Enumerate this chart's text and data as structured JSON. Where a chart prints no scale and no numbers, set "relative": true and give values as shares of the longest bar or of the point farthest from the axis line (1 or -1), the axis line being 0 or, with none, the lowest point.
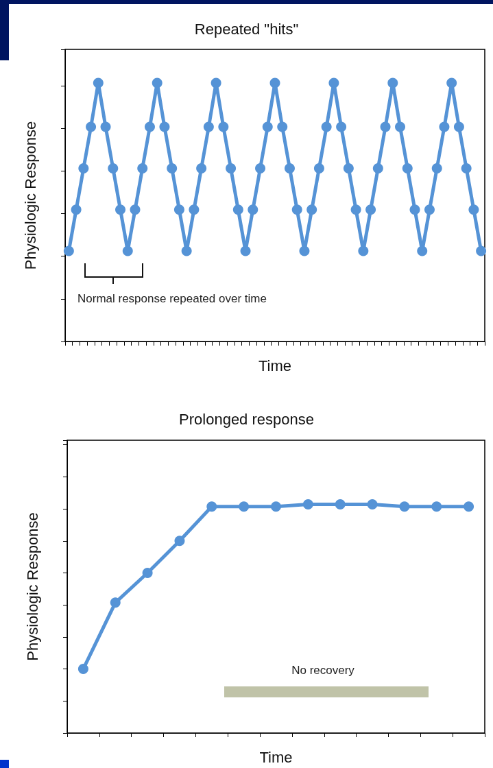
{
  "chart_data": [
    {
      "type": "line",
      "title": "Repeated \"hits\"",
      "xlabel": "Time",
      "ylabel": "Physiologic Response",
      "relative": true,
      "marker": "circle",
      "line_style": "solid",
      "categories": [
        null,
        null,
        null,
        null,
        null,
        null,
        null,
        null,
        null,
        null,
        null,
        null,
        null,
        null,
        null,
        null,
        null,
        null,
        null,
        null,
        null,
        null,
        null,
        null,
        null,
        null,
        null,
        null,
        null,
        null,
        null,
        null,
        null,
        null,
        null,
        null,
        null,
        null,
        null,
        null,
        null,
        null,
        null,
        null,
        null,
        null,
        null,
        null,
        null,
        null,
        null,
        null,
        null,
        null,
        null,
        null,
        null
      ],
      "series": [
        {
          "color": "#5593d6",
          "values": [
            0.35,
            0.51,
            0.67,
            0.83,
            1,
            0.83,
            0.67,
            0.51,
            0.35,
            0.51,
            0.67,
            0.83,
            1,
            0.83,
            0.67,
            0.51,
            0.35,
            0.51,
            0.67,
            0.83,
            1,
            0.83,
            0.67,
            0.51,
            0.35,
            0.51,
            0.67,
            0.83,
            1,
            0.83,
            0.67,
            0.51,
            0.35,
            0.51,
            0.67,
            0.83,
            1,
            0.83,
            0.67,
            0.51,
            0.35,
            0.51,
            0.67,
            0.83,
            1,
            0.83,
            0.67,
            0.51,
            0.35,
            0.51,
            0.67,
            0.83,
            1,
            0.83,
            0.67,
            0.51,
            0.35
          ]
        }
      ],
      "annotations": [
        "Normal response repeated over time"
      ]
    },
    {
      "type": "line",
      "title": "Prolonged response",
      "xlabel": "Time",
      "ylabel": "Physiologic Response",
      "relative": true,
      "marker": "circle",
      "line_style": "solid",
      "categories": [
        null,
        null,
        null,
        null,
        null,
        null,
        null,
        null,
        null,
        null,
        null,
        null,
        null
      ],
      "series": [
        {
          "color": "#5593d6",
          "values": [
            0.28,
            0.57,
            0.7,
            0.84,
            0.99,
            0.99,
            0.99,
            1,
            1,
            1,
            0.99,
            0.99,
            0.99
          ]
        }
      ],
      "annotations": [
        "No recovery"
      ]
    }
  ]
}
